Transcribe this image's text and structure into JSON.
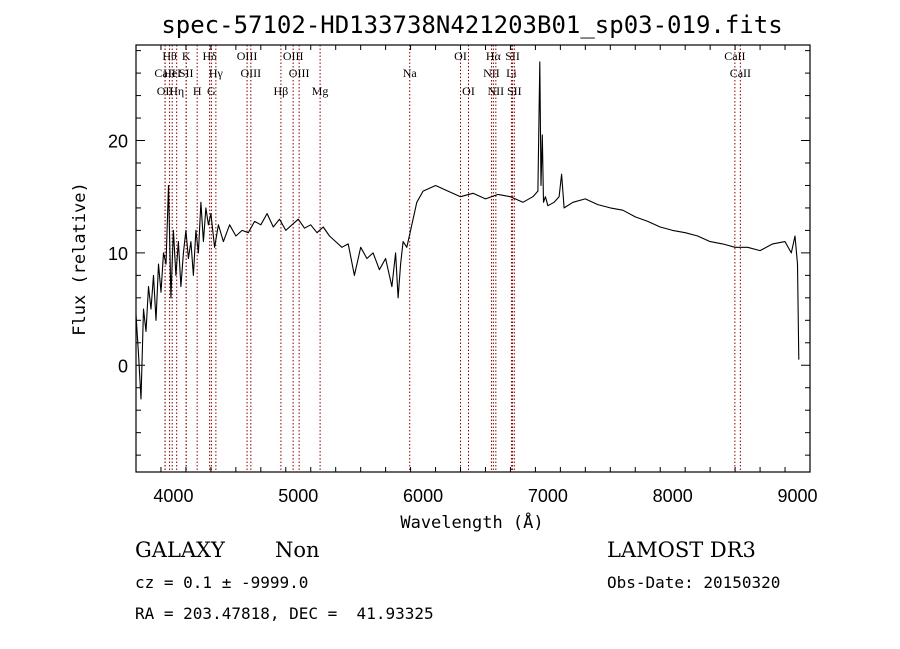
{
  "chart_data": {
    "type": "line",
    "title": "spec-57102-HD133738N421203B01_sp03-019.fits",
    "xlabel": "Wavelength (Å)",
    "ylabel": "Flux (relative)",
    "xlim": [
      3700,
      9100
    ],
    "ylim": [
      -9.5,
      28.5
    ],
    "xticks": [
      4000,
      5000,
      6000,
      7000,
      8000,
      9000
    ],
    "yticks": [
      0,
      10,
      20
    ],
    "xtick_labels": [
      "4000",
      "5000",
      "6000",
      "7000",
      "8000",
      "9000"
    ],
    "ytick_labels": [
      "0",
      "10",
      "20"
    ],
    "line_color": "#000000",
    "marker_color": "#8b0000",
    "spectrum": {
      "x": [
        3700,
        3720,
        3740,
        3760,
        3780,
        3800,
        3820,
        3840,
        3860,
        3880,
        3900,
        3920,
        3940,
        3960,
        3980,
        4000,
        4020,
        4040,
        4060,
        4080,
        4100,
        4120,
        4140,
        4160,
        4180,
        4200,
        4220,
        4240,
        4260,
        4280,
        4300,
        4330,
        4360,
        4400,
        4450,
        4500,
        4550,
        4600,
        4650,
        4700,
        4750,
        4800,
        4850,
        4900,
        4950,
        5000,
        5050,
        5100,
        5150,
        5200,
        5250,
        5300,
        5350,
        5400,
        5450,
        5500,
        5550,
        5600,
        5650,
        5700,
        5750,
        5780,
        5800,
        5820,
        5840,
        5870,
        5900,
        5950,
        6000,
        6100,
        6200,
        6300,
        6400,
        6500,
        6600,
        6700,
        6800,
        6880,
        6920,
        6935,
        6945,
        6955,
        6965,
        6980,
        7000,
        7050,
        7090,
        7110,
        7130,
        7200,
        7300,
        7400,
        7500,
        7600,
        7700,
        7800,
        7900,
        8000,
        8100,
        8200,
        8300,
        8400,
        8500,
        8600,
        8700,
        8800,
        8900,
        8950,
        8980,
        9000,
        9010
      ],
      "y": [
        4.5,
        1.0,
        -3.0,
        5.0,
        3.0,
        7.0,
        5.0,
        8.0,
        4.0,
        9.0,
        6.5,
        10.0,
        9.0,
        16.0,
        6.0,
        12.0,
        8.0,
        11.0,
        7.0,
        10.0,
        12.0,
        9.5,
        11.0,
        8.0,
        12.0,
        10.0,
        14.5,
        11.0,
        14.0,
        12.5,
        13.5,
        10.5,
        12.5,
        11.0,
        12.5,
        11.5,
        12.0,
        11.8,
        12.8,
        12.5,
        13.5,
        12.3,
        13.0,
        12.0,
        12.5,
        13.0,
        12.2,
        12.5,
        11.8,
        12.3,
        11.5,
        11.0,
        10.5,
        10.8,
        8.0,
        10.5,
        9.5,
        10.0,
        8.5,
        9.5,
        7.0,
        10.0,
        6.0,
        9.0,
        11.0,
        10.5,
        12.0,
        14.5,
        15.5,
        16.0,
        15.5,
        15.0,
        15.3,
        14.8,
        15.2,
        15.0,
        14.5,
        15.0,
        15.5,
        27.0,
        16.0,
        20.5,
        14.5,
        15.0,
        14.2,
        14.5,
        15.0,
        17.0,
        14.0,
        14.5,
        14.8,
        14.3,
        14.0,
        13.8,
        13.2,
        12.8,
        12.3,
        12.0,
        11.8,
        11.5,
        11.0,
        10.8,
        10.5,
        10.5,
        10.2,
        10.8,
        11.0,
        10.0,
        11.5,
        9.0,
        0.5
      ]
    },
    "spectral_lines": [
      {
        "wavelength": 3933,
        "label": "CaII",
        "row": 1
      },
      {
        "wavelength": 3933,
        "label": "OII",
        "row": 2
      },
      {
        "wavelength": 3969,
        "label": "Hθ",
        "row": 0
      },
      {
        "wavelength": 3990,
        "label": "HeI",
        "row": 1
      },
      {
        "wavelength": 4026,
        "label": "Hη",
        "row": 2
      },
      {
        "wavelength": 4102,
        "label": "K",
        "row": 0
      },
      {
        "wavelength": 4102,
        "label": "SII",
        "row": 1
      },
      {
        "wavelength": 4190,
        "label": "H",
        "row": 2
      },
      {
        "wavelength": 4290,
        "label": "Hδ",
        "row": 0
      },
      {
        "wavelength": 4304,
        "label": "G",
        "row": 2
      },
      {
        "wavelength": 4340,
        "label": "Hγ",
        "row": 1
      },
      {
        "wavelength": 4590,
        "label": "OIII",
        "row": 0
      },
      {
        "wavelength": 4620,
        "label": "OIII",
        "row": 1
      },
      {
        "wavelength": 4861,
        "label": "Hβ",
        "row": 2
      },
      {
        "wavelength": 4959,
        "label": "OIII",
        "row": 0
      },
      {
        "wavelength": 5007,
        "label": "OIII",
        "row": 1
      },
      {
        "wavelength": 5175,
        "label": "Mg",
        "row": 2
      },
      {
        "wavelength": 5893,
        "label": "Na",
        "row": 1
      },
      {
        "wavelength": 6300,
        "label": "OI",
        "row": 0
      },
      {
        "wavelength": 6364,
        "label": "OI",
        "row": 2
      },
      {
        "wavelength": 6548,
        "label": "NII",
        "row": 1
      },
      {
        "wavelength": 6563,
        "label": "Hα",
        "row": 0
      },
      {
        "wavelength": 6583,
        "label": "NII",
        "row": 2
      },
      {
        "wavelength": 6708,
        "label": "Li",
        "row": 1
      },
      {
        "wavelength": 6717,
        "label": "SII",
        "row": 0
      },
      {
        "wavelength": 6731,
        "label": "SII",
        "row": 2
      },
      {
        "wavelength": 8498,
        "label": "CaII",
        "row": 0
      },
      {
        "wavelength": 8542,
        "label": "CaII",
        "row": 1
      }
    ]
  },
  "info": {
    "class": "GALAXY",
    "subclass": "Non",
    "survey": "LAMOST DR3",
    "cz": "cz = 0.1 ± -9999.0",
    "obs_date": "Obs-Date: 20150320",
    "coords": "RA = 203.47818, DEC =  41.93325"
  }
}
